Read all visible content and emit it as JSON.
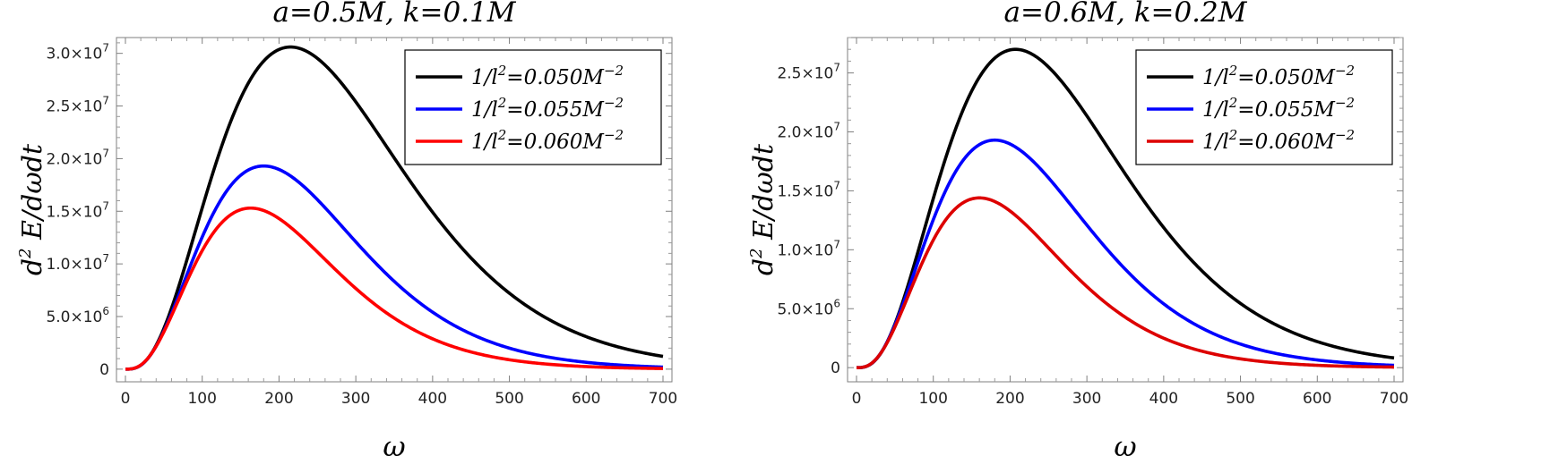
{
  "chart_data": [
    {
      "type": "line",
      "title": "a=0.5M, k=0.1M",
      "xlabel": "ω",
      "ylabel_base": "d",
      "ylabel_sup": "2",
      "ylabel_rest": "E/dωdt",
      "xlim": [
        0,
        700
      ],
      "ylim": [
        -1200000,
        31500000
      ],
      "x_ticks": [
        0,
        100,
        200,
        300,
        400,
        500,
        600,
        700
      ],
      "y_ticks": [
        {
          "value": 0,
          "mantissa": "0",
          "exp": ""
        },
        {
          "value": 5000000,
          "mantissa": "5.0×10",
          "exp": "6"
        },
        {
          "value": 10000000,
          "mantissa": "1.0×10",
          "exp": "7"
        },
        {
          "value": 15000000,
          "mantissa": "1.5×10",
          "exp": "7"
        },
        {
          "value": 20000000,
          "mantissa": "2.0×10",
          "exp": "7"
        },
        {
          "value": 25000000,
          "mantissa": "2.5×10",
          "exp": "7"
        },
        {
          "value": 30000000,
          "mantissa": "3.0×10",
          "exp": "7"
        }
      ],
      "legend_position": "top-right",
      "series": [
        {
          "name_pre": "1/l",
          "name_sup_a": "2",
          "name_mid": "=0.050M",
          "name_sup_b": "−2",
          "color": "#000000",
          "peak_x": 215,
          "peak_y": 30600000
        },
        {
          "name_pre": "1/l",
          "name_sup_a": "2",
          "name_mid": "=0.055M",
          "name_sup_b": "−2",
          "color": "#0000ff",
          "peak_x": 180,
          "peak_y": 19300000
        },
        {
          "name_pre": "1/l",
          "name_sup_a": "2",
          "name_mid": "=0.060M",
          "name_sup_b": "−2",
          "color": "#ff0000",
          "peak_x": 163,
          "peak_y": 15300000
        }
      ]
    },
    {
      "type": "line",
      "title": "a=0.6M, k=0.2M",
      "xlabel": "ω",
      "ylabel_base": "d",
      "ylabel_sup": "2",
      "ylabel_rest": "E/dωdt",
      "xlim": [
        0,
        700
      ],
      "ylim": [
        -1200000,
        28000000
      ],
      "x_ticks": [
        0,
        100,
        200,
        300,
        400,
        500,
        600,
        700
      ],
      "y_ticks": [
        {
          "value": 0,
          "mantissa": "0",
          "exp": ""
        },
        {
          "value": 5000000,
          "mantissa": "5.0×10",
          "exp": "6"
        },
        {
          "value": 10000000,
          "mantissa": "1.0×10",
          "exp": "7"
        },
        {
          "value": 15000000,
          "mantissa": "1.5×10",
          "exp": "7"
        },
        {
          "value": 20000000,
          "mantissa": "2.0×10",
          "exp": "7"
        },
        {
          "value": 25000000,
          "mantissa": "2.5×10",
          "exp": "7"
        }
      ],
      "legend_position": "top-right",
      "series": [
        {
          "name_pre": "1/l",
          "name_sup_a": "2",
          "name_mid": "=0.050M",
          "name_sup_b": "−2",
          "color": "#000000",
          "peak_x": 207,
          "peak_y": 27000000
        },
        {
          "name_pre": "1/l",
          "name_sup_a": "2",
          "name_mid": "=0.055M",
          "name_sup_b": "−2",
          "color": "#0000ff",
          "peak_x": 180,
          "peak_y": 19300000
        },
        {
          "name_pre": "1/l",
          "name_sup_a": "2",
          "name_mid": "=0.060M",
          "name_sup_b": "−2",
          "color": "#dd0000",
          "peak_x": 160,
          "peak_y": 14400000
        }
      ]
    }
  ]
}
